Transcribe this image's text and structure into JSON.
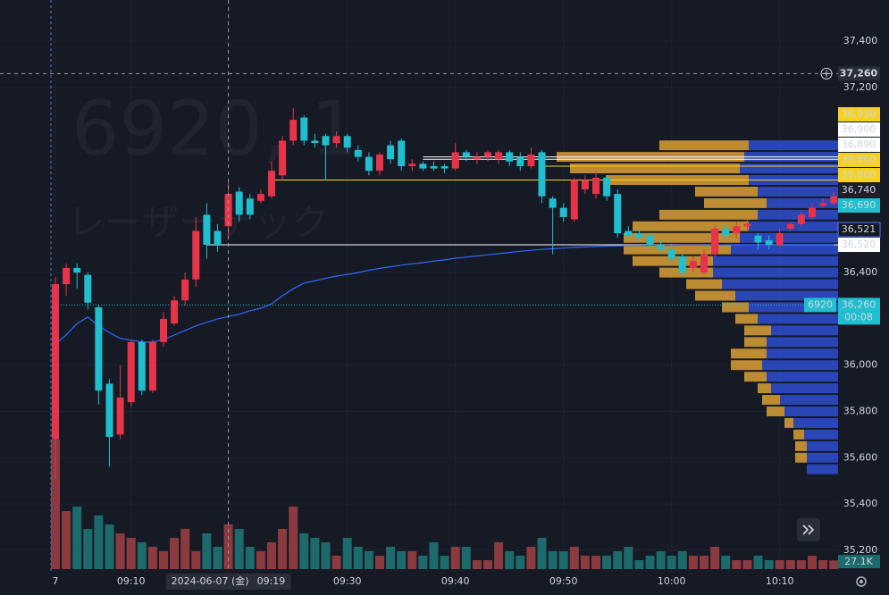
{
  "chart_data": {
    "type": "candlestick",
    "title": "6920, 1",
    "subtitle": "レーザーテック",
    "ylim": [
      35107,
      37578
    ],
    "yticks": [
      {
        "value": 37400,
        "label": "37,400"
      },
      {
        "value": 37200,
        "label": "37,200"
      },
      {
        "value": 36400,
        "label": "36,400"
      },
      {
        "value": 36000,
        "label": "36,000"
      },
      {
        "value": 35800,
        "label": "35,800"
      },
      {
        "value": 35600,
        "label": "35,600"
      },
      {
        "value": 35400,
        "label": "35,400"
      },
      {
        "value": 35200,
        "label": "35,200"
      }
    ],
    "xticks": [
      {
        "value": 0,
        "label": "7"
      },
      {
        "value": 7,
        "label": "09:10"
      },
      {
        "value": 27,
        "label": "09:30"
      },
      {
        "value": 37,
        "label": "09:40"
      },
      {
        "value": 47,
        "label": "09:50"
      },
      {
        "value": 57,
        "label": "10:00"
      },
      {
        "value": 67,
        "label": "10:10"
      }
    ],
    "grid": true,
    "up_color": "#e8344a",
    "down_color": "#1fbfd0",
    "open": [
      35680,
      36350,
      36420,
      36390,
      36250,
      35920,
      35700,
      35840,
      36100,
      35890,
      36100,
      36180,
      36280,
      36370,
      36650,
      36580,
      36600,
      36750,
      36720,
      36710,
      36730,
      36820,
      36970,
      37070,
      36970,
      36990,
      36960,
      36990,
      36930,
      36900,
      36840,
      36950,
      36970,
      36860,
      36870,
      36860,
      36860,
      36850,
      36920,
      36890,
      36900,
      36890,
      36920,
      36900,
      36860,
      36920,
      36720,
      36680,
      36630,
      36760,
      36740,
      36810,
      36740,
      36580,
      36570,
      36560,
      36520,
      36500,
      36470,
      36420,
      36400,
      36480,
      36590,
      36570,
      36600,
      36560,
      36540,
      36520,
      36590,
      36610,
      36640,
      36690,
      36700
    ],
    "close": [
      36350,
      36420,
      36400,
      36270,
      35890,
      35690,
      35860,
      36100,
      35890,
      36100,
      36200,
      36280,
      36370,
      36580,
      36520,
      36520,
      36740,
      36650,
      36650,
      36740,
      36840,
      36970,
      37060,
      36970,
      36960,
      36950,
      36990,
      36940,
      36900,
      36840,
      36910,
      36890,
      36860,
      36870,
      36850,
      36850,
      36850,
      36920,
      36900,
      36900,
      36920,
      36920,
      36880,
      36860,
      36910,
      36730,
      36680,
      36640,
      36800,
      36800,
      36810,
      36730,
      36570,
      36560,
      36550,
      36520,
      36500,
      36460,
      36400,
      36450,
      36480,
      36590,
      36560,
      36600,
      36610,
      36530,
      36520,
      36570,
      36610,
      36650,
      36680,
      36700,
      36730
    ],
    "high": [
      36380,
      36440,
      36440,
      36400,
      36260,
      35940,
      36000,
      36110,
      36110,
      36110,
      36230,
      36300,
      36400,
      36640,
      36700,
      36610,
      36790,
      36770,
      36740,
      36760,
      36880,
      36990,
      37110,
      37080,
      37000,
      37000,
      37010,
      37000,
      36950,
      36920,
      36920,
      36970,
      36980,
      36890,
      36880,
      36880,
      36870,
      36960,
      36930,
      36920,
      36930,
      36930,
      36930,
      36920,
      36940,
      36930,
      36730,
      36700,
      36810,
      36820,
      36840,
      36820,
      36760,
      36600,
      36590,
      36570,
      36540,
      36520,
      36480,
      36470,
      36500,
      36600,
      36610,
      36620,
      36630,
      36570,
      36560,
      36590,
      36620,
      36660,
      36700,
      36720,
      36750
    ],
    "low": [
      35510,
      36300,
      36330,
      36240,
      35830,
      35560,
      35680,
      35820,
      35870,
      35880,
      36080,
      36170,
      36260,
      36340,
      36460,
      36490,
      36560,
      36620,
      36630,
      36700,
      36720,
      36800,
      36950,
      36950,
      36940,
      36800,
      36940,
      36920,
      36880,
      36820,
      36820,
      36870,
      36840,
      36840,
      36840,
      36840,
      36830,
      36840,
      36880,
      36870,
      36880,
      36870,
      36860,
      36840,
      36850,
      36700,
      36480,
      36620,
      36620,
      36740,
      36720,
      36710,
      36550,
      36540,
      36530,
      36500,
      36480,
      36440,
      36380,
      36400,
      36390,
      36470,
      36540,
      36550,
      36580,
      36500,
      36500,
      36510,
      36580,
      36600,
      36630,
      36680,
      36690
    ],
    "vwap": {
      "color": "#2f6bff",
      "values": [
        36092,
        36130,
        36180,
        36208,
        36170,
        36140,
        36115,
        36108,
        36100,
        36100,
        36110,
        36130,
        36150,
        36170,
        36185,
        36200,
        36210,
        36220,
        36235,
        36246,
        36265,
        36300,
        36330,
        36355,
        36365,
        36375,
        36385,
        36392,
        36400,
        36410,
        36418,
        36425,
        36432,
        36438,
        36443,
        36450,
        36455,
        36462,
        36467,
        36472,
        36477,
        36482,
        36487,
        36492,
        36496,
        36500,
        36503,
        36506,
        36509,
        36511,
        36513,
        36515,
        36516,
        36517,
        36517,
        36518,
        36518,
        36518,
        36519,
        36519,
        36519,
        36519,
        36520,
        36520,
        36520,
        36520,
        36520,
        36521,
        36521,
        36521,
        36521,
        36521,
        36521
      ]
    },
    "volume": {
      "ylim": [
        0,
        420000
      ],
      "up_color": "#8b3a40",
      "down_color": "#1d6a6c",
      "last_label": "27.1K",
      "values": [
        406000,
        182000,
        196000,
        126000,
        168000,
        140000,
        112000,
        98000,
        84000,
        70000,
        56000,
        98000,
        126000,
        56000,
        112000,
        70000,
        140000,
        126000,
        70000,
        56000,
        84000,
        126000,
        196000,
        112000,
        98000,
        84000,
        42000,
        98000,
        70000,
        56000,
        42000,
        70000,
        56000,
        56000,
        42000,
        84000,
        42000,
        70000,
        70000,
        28000,
        28000,
        84000,
        56000,
        42000,
        70000,
        98000,
        56000,
        56000,
        70000,
        42000,
        42000,
        42000,
        56000,
        70000,
        28000,
        42000,
        56000,
        42000,
        56000,
        42000,
        42000,
        70000,
        42000,
        28000,
        28000,
        42000,
        28000,
        28000,
        28000,
        28000,
        42000,
        28000,
        27100
      ]
    },
    "volume_profile": {
      "xlim": [
        0,
        330
      ],
      "prices": [
        35550,
        35600,
        35650,
        35700,
        35750,
        35800,
        35850,
        35900,
        35950,
        36000,
        36050,
        36100,
        36150,
        36200,
        36250,
        36300,
        36350,
        36400,
        36450,
        36500,
        36550,
        36600,
        36650,
        36700,
        36750,
        36800,
        36850,
        36900,
        36950
      ],
      "series": [
        {
          "color": "#2e4fd0",
          "values": [
            35,
            35,
            35,
            38,
            50,
            60,
            65,
            75,
            80,
            85,
            80,
            80,
            75,
            90,
            100,
            115,
            130,
            140,
            140,
            120,
            110,
            100,
            90,
            80,
            90,
            100,
            110,
            105,
            100
          ]
        },
        {
          "color": "#d9a035",
          "values": [
            0,
            13,
            13,
            12,
            10,
            20,
            20,
            15,
            25,
            35,
            40,
            25,
            30,
            25,
            30,
            45,
            40,
            60,
            90,
            120,
            130,
            130,
            110,
            70,
            70,
            160,
            190,
            210,
            100
          ]
        }
      ]
    },
    "lines": [
      {
        "value": 36900,
        "start": 34,
        "color": "#ffffff"
      },
      {
        "value": 36890,
        "start": 34,
        "color": "#ffffff"
      },
      {
        "value": 36860,
        "start": 45,
        "color": "#f5d21f"
      },
      {
        "value": 36800,
        "start": 20,
        "color": "#f5d21f"
      },
      {
        "value": 36520,
        "start": 14,
        "color": "#ffffff"
      },
      {
        "value": 36260,
        "start": 0,
        "color": "#1fbfd0"
      }
    ],
    "crosshair": {
      "value": 37260,
      "label": "37,260",
      "index": 16,
      "date": "2024-06-07 (金)",
      "time": "09:19"
    },
    "price_labels": [
      {
        "value": 36930,
        "label": "36,930",
        "bg": "#f5d21f",
        "fg": "#000000"
      },
      {
        "value": 36900,
        "label": "36,900",
        "bg": "#ffffff",
        "fg": "#000000"
      },
      {
        "value": 36890,
        "label": "36,890",
        "bg": "#ffffff",
        "fg": "#000000"
      },
      {
        "value": 36860,
        "label": "36,860",
        "bg": "#f5d21f",
        "fg": "#000000"
      },
      {
        "value": 36800,
        "label": "36,800",
        "bg": "#f5d21f",
        "fg": "#000000"
      },
      {
        "value": 36740,
        "label": "36,740",
        "bg": "#1b1f2a",
        "fg": "#f23645"
      },
      {
        "value": 36690,
        "label": "36,690",
        "bg": "#1fbfd0",
        "fg": "#0b1a24"
      },
      {
        "value": 36521,
        "label": "36,521",
        "bg": "#161a25",
        "fg": "#4d7dff"
      },
      {
        "value": 36520,
        "label": "36,520",
        "bg": "#ffffff",
        "fg": "#000000"
      },
      {
        "value": 36260,
        "label": "36,260",
        "bg": "#1fbfd0",
        "fg": "#0b1a24",
        "tag": "6920",
        "countdown": "00:08"
      }
    ]
  }
}
